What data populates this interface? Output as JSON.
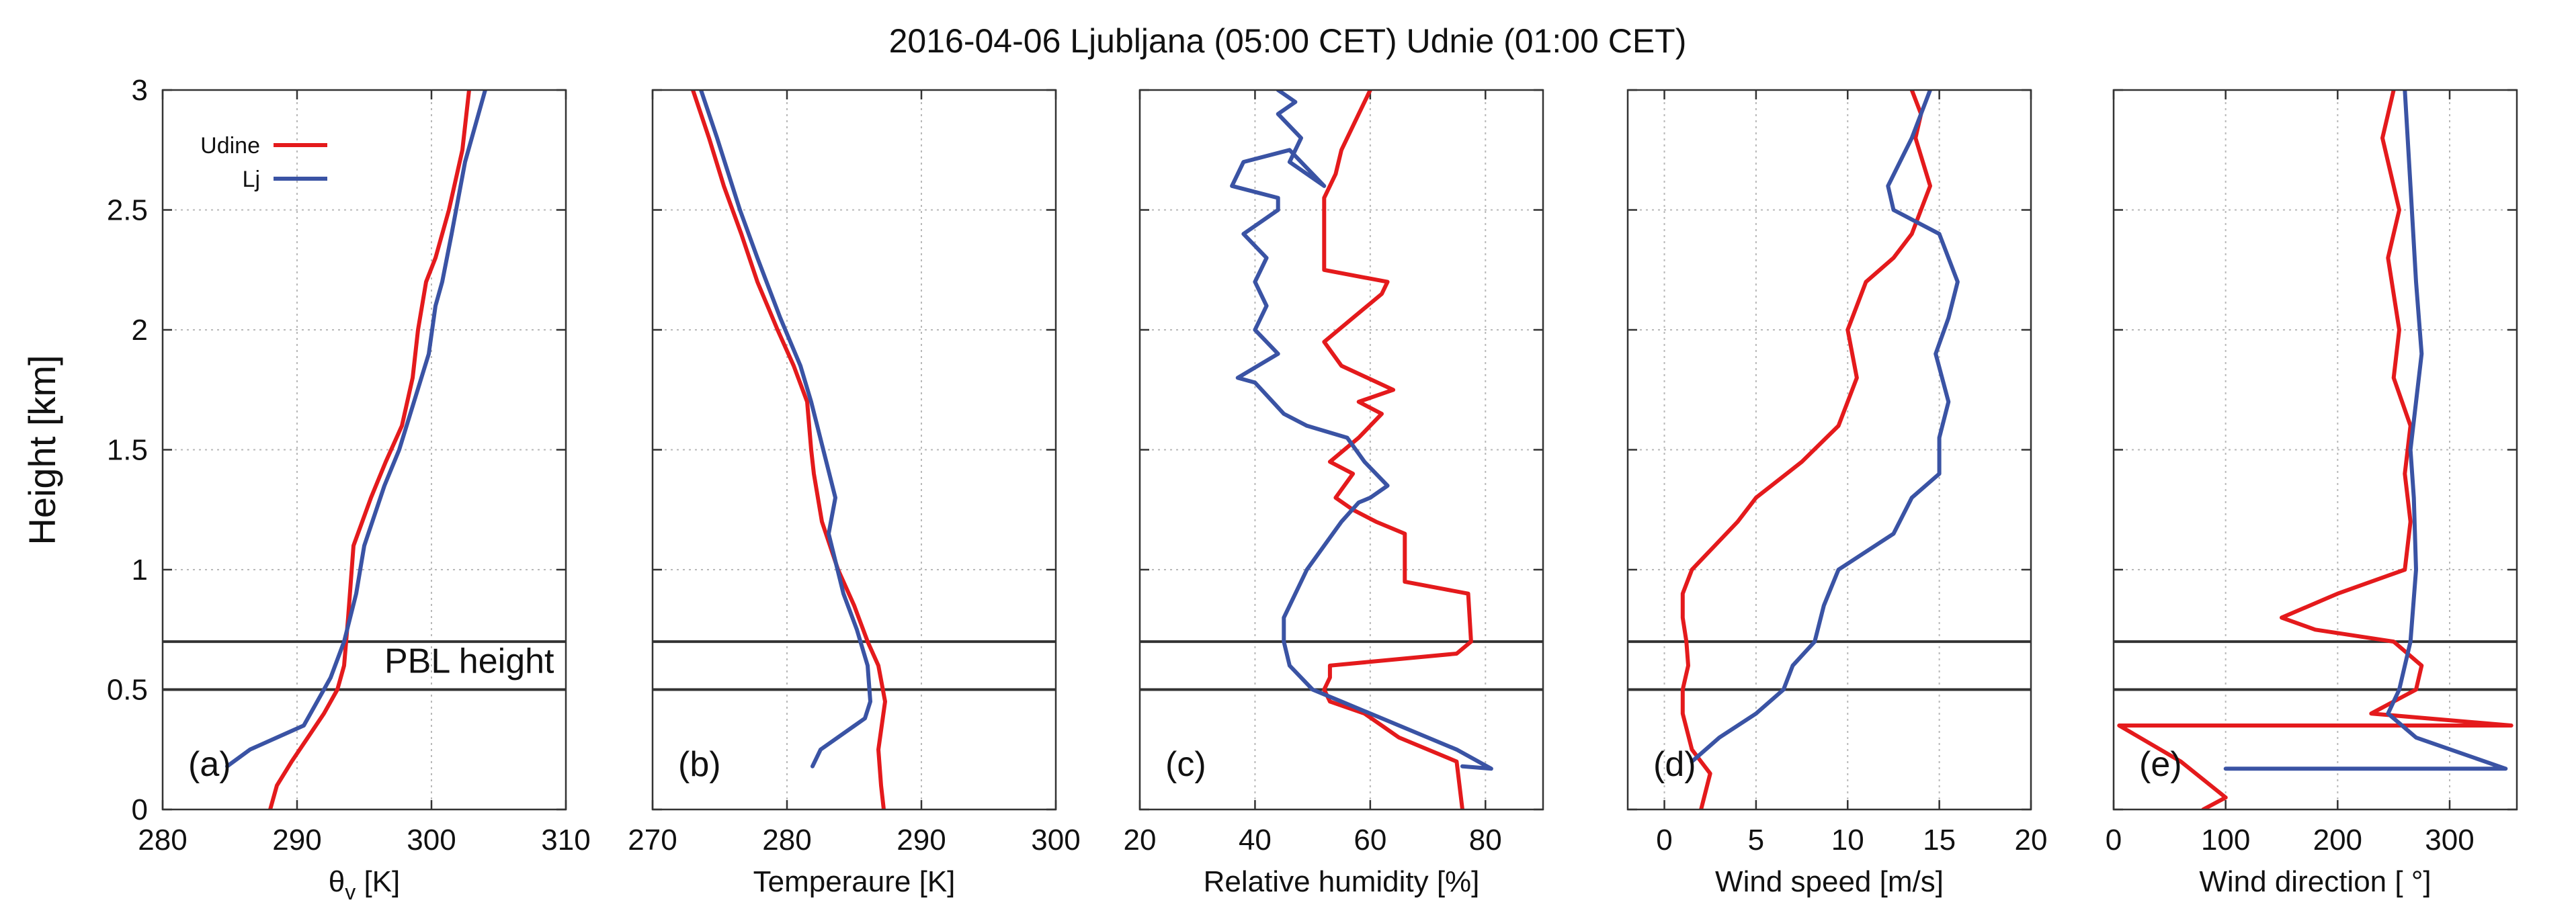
{
  "chart_data": {
    "type": "line",
    "title": "2016-04-06 Ljubljana (05:00 CET) Udnie (01:00 CET)",
    "ylabel": "Height [km]",
    "ylim": [
      0,
      3
    ],
    "yticks": [
      "0",
      "0.5",
      "1",
      "1.5",
      "2",
      "2.5",
      "3"
    ],
    "ytick_values": [
      0,
      0.5,
      1,
      1.5,
      2,
      2.5,
      3
    ],
    "grid": true,
    "legend": {
      "placement": "top-left of panel (a)",
      "entries": [
        {
          "name": "Udine",
          "color": "#e41a1c"
        },
        {
          "name": "Lj",
          "color": "#3a53a4"
        }
      ]
    },
    "pbl": {
      "label": "PBL height",
      "heights": [
        0.5,
        0.7
      ]
    },
    "panels": [
      {
        "label": "(a)",
        "xlabel": "θv [K]",
        "xlabel_main": "θ",
        "xlabel_sub": "v",
        "xlabel_rest": " [K]",
        "xlim": [
          280,
          310
        ],
        "xticks": [
          280,
          290,
          300,
          310
        ],
        "xtick_labels": [
          "280",
          "290",
          "300",
          "310"
        ],
        "series": [
          {
            "name": "Udine",
            "color": "#e41a1c",
            "x": [
              288,
              288.5,
              289.6,
              290.8,
              292,
              293,
              293.5,
              293.8,
              294.2,
              295.5,
              296.6,
              297.8,
              298.6,
              299,
              299.6,
              300.3,
              301.3,
              302.3,
              302.8
            ],
            "y": [
              0,
              0.1,
              0.2,
              0.3,
              0.4,
              0.5,
              0.6,
              0.8,
              1.1,
              1.3,
              1.45,
              1.6,
              1.8,
              2,
              2.2,
              2.3,
              2.5,
              2.75,
              3.0
            ]
          },
          {
            "name": "Lj",
            "color": "#3a53a4",
            "x": [
              284.8,
              286.5,
              288.5,
              290.5,
              291.5,
              292.5,
              293.5,
              294.4,
              295,
              296.5,
              297.6,
              298.7,
              299.8,
              300.3,
              300.8,
              301.5,
              302.5,
              304
            ],
            "y": [
              0.18,
              0.25,
              0.3,
              0.35,
              0.45,
              0.55,
              0.7,
              0.9,
              1.1,
              1.35,
              1.5,
              1.7,
              1.9,
              2.1,
              2.2,
              2.4,
              2.7,
              3.0
            ]
          }
        ]
      },
      {
        "label": "(b)",
        "xlabel": "Temperaure [K]",
        "xlim": [
          270,
          300
        ],
        "xticks": [
          270,
          280,
          290,
          300
        ],
        "xtick_labels": [
          "270",
          "280",
          "290",
          "300"
        ],
        "series": [
          {
            "name": "Udine",
            "color": "#e41a1c",
            "x": [
              287.2,
              287,
              286.8,
              287.3,
              286.8,
              286,
              285,
              283.8,
              282.6,
              282,
              281.8,
              281.5,
              280.5,
              279.3,
              277.8,
              276.6,
              275.3,
              274.2,
              273
            ],
            "y": [
              0,
              0.1,
              0.25,
              0.45,
              0.6,
              0.7,
              0.85,
              1.0,
              1.2,
              1.4,
              1.5,
              1.7,
              1.85,
              2.0,
              2.2,
              2.4,
              2.6,
              2.8,
              3.0
            ]
          },
          {
            "name": "Lj",
            "color": "#3a53a4",
            "x": [
              281.9,
              282.5,
              285.8,
              286.2,
              286,
              285.2,
              284.2,
              283.1,
              283.6,
              282.7,
              281.8,
              281,
              279.5,
              277.8,
              276.5,
              274.8,
              273.6
            ],
            "y": [
              0.18,
              0.25,
              0.38,
              0.45,
              0.6,
              0.75,
              0.9,
              1.15,
              1.3,
              1.5,
              1.7,
              1.85,
              2.05,
              2.3,
              2.5,
              2.8,
              3.0
            ]
          }
        ]
      },
      {
        "label": "(c)",
        "xlabel": "Relative humidity [%]",
        "xlim": [
          20,
          90
        ],
        "xticks": [
          20,
          40,
          60,
          80
        ],
        "xtick_labels": [
          "20",
          "40",
          "60",
          "80"
        ],
        "series": [
          {
            "name": "Udine",
            "color": "#e41a1c",
            "x": [
              76,
              75,
              65,
              62,
              59,
              53,
              52,
              53,
              53,
              75,
              77.5,
              77,
              66,
              66,
              61,
              57,
              54,
              57,
              53,
              58,
              62,
              58,
              64,
              55,
              52,
              57,
              62,
              63,
              52,
              52,
              54,
              55,
              58,
              60
            ],
            "y": [
              0,
              0.2,
              0.3,
              0.35,
              0.4,
              0.45,
              0.5,
              0.55,
              0.6,
              0.65,
              0.7,
              0.9,
              0.95,
              1.15,
              1.2,
              1.25,
              1.3,
              1.4,
              1.45,
              1.55,
              1.65,
              1.7,
              1.75,
              1.85,
              1.95,
              2.05,
              2.15,
              2.2,
              2.25,
              2.55,
              2.65,
              2.75,
              2.9,
              3.0
            ]
          },
          {
            "name": "Lj",
            "color": "#3a53a4",
            "x": [
              76,
              81,
              75,
              65,
              55,
              50,
              46,
              45,
              45,
              49,
              55,
              58,
              60,
              63,
              59,
              56,
              49,
              45,
              40,
              37,
              44,
              40,
              42,
              40,
              42,
              38,
              44,
              44,
              36,
              38,
              46,
              52,
              46,
              48,
              44,
              47,
              44
            ],
            "y": [
              0.18,
              0.17,
              0.25,
              0.35,
              0.45,
              0.5,
              0.6,
              0.7,
              0.8,
              1.0,
              1.2,
              1.28,
              1.3,
              1.35,
              1.45,
              1.55,
              1.6,
              1.65,
              1.78,
              1.8,
              1.9,
              2.0,
              2.1,
              2.2,
              2.3,
              2.4,
              2.5,
              2.55,
              2.6,
              2.7,
              2.75,
              2.6,
              2.7,
              2.8,
              2.9,
              2.95,
              3.0
            ]
          }
        ]
      },
      {
        "label": "(d)",
        "xlabel": "Wind speed [m/s]",
        "xlim": [
          -2,
          20
        ],
        "xticks": [
          0,
          5,
          10,
          15,
          20
        ],
        "xtick_labels": [
          "0",
          "5",
          "10",
          "15",
          "20"
        ],
        "series": [
          {
            "name": "Udine",
            "color": "#e41a1c",
            "x": [
              2,
              2.5,
              1.5,
              1,
              1,
              1.3,
              1.2,
              1,
              1,
              1.5,
              4,
              5,
              7.5,
              9.5,
              10.5,
              10,
              11,
              12.5,
              13.5,
              14.5,
              13.7,
              14,
              13.5
            ],
            "y": [
              0,
              0.15,
              0.25,
              0.4,
              0.5,
              0.6,
              0.7,
              0.8,
              0.9,
              1.0,
              1.2,
              1.3,
              1.45,
              1.6,
              1.8,
              2.0,
              2.2,
              2.3,
              2.4,
              2.6,
              2.8,
              2.9,
              3.0
            ]
          },
          {
            "name": "Lj",
            "color": "#3a53a4",
            "x": [
              1.5,
              3,
              5,
              6.5,
              7,
              8.2,
              8.7,
              9.5,
              12.5,
              13.5,
              15,
              15,
              15.5,
              14.8,
              15.5,
              16,
              15,
              12.5,
              12.2,
              13.5,
              14.5
            ],
            "y": [
              0.2,
              0.3,
              0.4,
              0.5,
              0.6,
              0.7,
              0.85,
              1.0,
              1.15,
              1.3,
              1.4,
              1.55,
              1.7,
              1.9,
              2.05,
              2.2,
              2.4,
              2.5,
              2.6,
              2.8,
              3.0
            ]
          }
        ]
      },
      {
        "label": "(e)",
        "xlabel": "Wind direction [ °]",
        "xlim": [
          0,
          360
        ],
        "xticks": [
          0,
          100,
          200,
          300
        ],
        "xtick_labels": [
          "0",
          "100",
          "200",
          "300"
        ],
        "series": [
          {
            "name": "Udine",
            "color": "#e41a1c",
            "x": [
              80,
              100,
              60,
              5,
              355,
              230,
              270,
              275,
              250,
              180,
              150,
              200,
              260,
              265,
              260,
              265,
              250,
              255,
              245,
              255,
              240,
              250
            ],
            "y": [
              0,
              0.05,
              0.2,
              0.35,
              0.35,
              0.4,
              0.5,
              0.6,
              0.7,
              0.75,
              0.8,
              0.9,
              1.0,
              1.2,
              1.4,
              1.6,
              1.8,
              2.0,
              2.3,
              2.5,
              2.8,
              3.0
            ]
          },
          {
            "name": "Lj",
            "color": "#3a53a4",
            "x": [
              100,
              350,
              270,
              245,
              255,
              265,
              270,
              268,
              265,
              270,
              275,
              270,
              265,
              260
            ],
            "y": [
              0.17,
              0.17,
              0.3,
              0.4,
              0.5,
              0.7,
              1.0,
              1.3,
              1.5,
              1.7,
              1.9,
              2.2,
              2.6,
              3.0
            ]
          }
        ]
      }
    ]
  }
}
